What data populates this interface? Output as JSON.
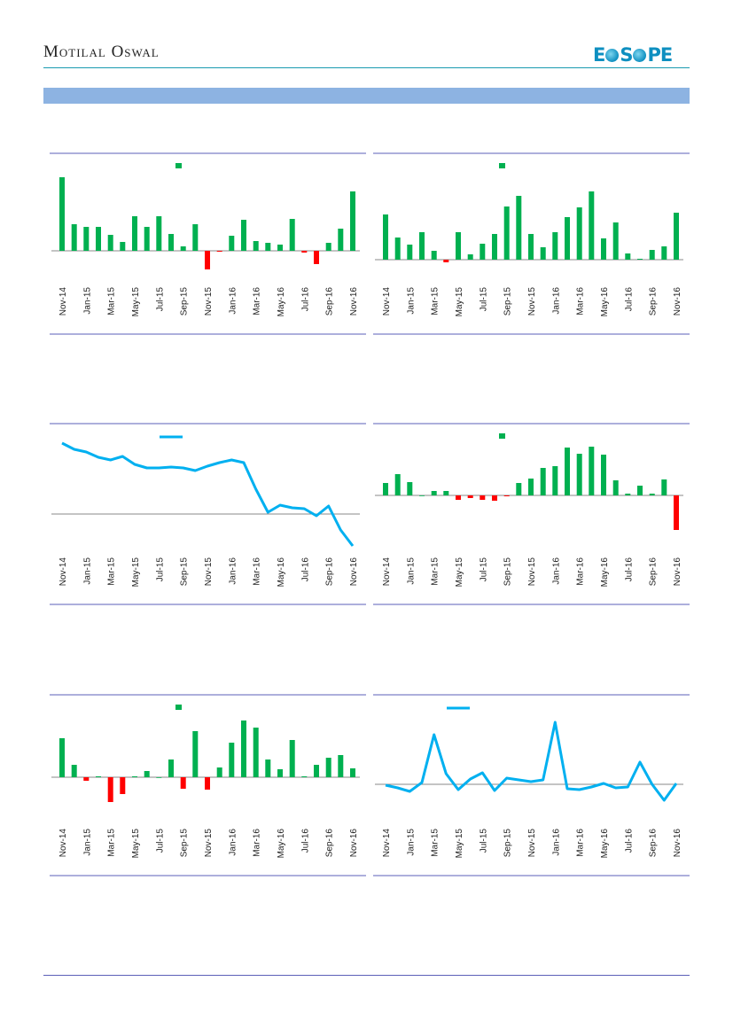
{
  "header": {
    "brand": "Motilal Oswal",
    "logo_text": "EcoScope"
  },
  "colors": {
    "positive": "#00b050",
    "negative": "#ff0000",
    "line": "#00b0f0",
    "frame": "#5b5fb8",
    "banner": "#8db3e2"
  },
  "chart_data": [
    {
      "type": "bar",
      "categories": [
        "Nov-14",
        "Dec-14",
        "Jan-15",
        "Feb-15",
        "Mar-15",
        "Apr-15",
        "May-15",
        "Jun-15",
        "Jul-15",
        "Aug-15",
        "Sep-15",
        "Oct-15",
        "Nov-15",
        "Dec-15",
        "Jan-16",
        "Feb-16",
        "Mar-16",
        "Apr-16",
        "May-16",
        "Jun-16",
        "Jul-16",
        "Aug-16",
        "Sep-16",
        "Oct-16",
        "Nov-16"
      ],
      "tick_labels": [
        "Nov-14",
        "Jan-15",
        "Mar-15",
        "May-15",
        "Jul-15",
        "Sep-15",
        "Nov-15",
        "Jan-16",
        "Mar-16",
        "May-16",
        "Jul-16",
        "Sep-16",
        "Nov-16"
      ],
      "values": [
        83,
        30,
        27,
        27,
        18,
        10,
        39,
        27,
        39,
        19,
        5,
        30,
        -21,
        -1,
        17,
        35,
        11,
        9,
        7,
        36,
        -2,
        -15,
        9,
        25,
        67
      ],
      "legend": "top-center"
    },
    {
      "type": "bar",
      "categories": [
        "Nov-14",
        "Dec-14",
        "Jan-15",
        "Feb-15",
        "Mar-15",
        "Apr-15",
        "May-15",
        "Jun-15",
        "Jul-15",
        "Aug-15",
        "Sep-15",
        "Oct-15",
        "Nov-15",
        "Dec-15",
        "Jan-16",
        "Feb-16",
        "Mar-16",
        "Apr-16",
        "May-16",
        "Jun-16",
        "Jul-16",
        "Aug-16",
        "Sep-16",
        "Oct-16",
        "Nov-16"
      ],
      "tick_labels": [
        "Nov-14",
        "Jan-15",
        "Mar-15",
        "May-15",
        "Jul-15",
        "Sep-15",
        "Nov-15",
        "Jan-16",
        "Mar-16",
        "May-16",
        "Jul-16",
        "Sep-16",
        "Nov-16"
      ],
      "values": [
        51,
        25,
        17,
        31,
        10,
        -3,
        31,
        6,
        18,
        29,
        60,
        72,
        29,
        14,
        31,
        48,
        59,
        77,
        24,
        42,
        7,
        1,
        11,
        15,
        53
      ],
      "legend": "top-center"
    },
    {
      "type": "line",
      "categories": [
        "Nov-14",
        "Dec-14",
        "Jan-15",
        "Feb-15",
        "Mar-15",
        "Apr-15",
        "May-15",
        "Jun-15",
        "Jul-15",
        "Aug-15",
        "Sep-15",
        "Oct-15",
        "Nov-15",
        "Dec-15",
        "Jan-16",
        "Feb-16",
        "Mar-16",
        "Apr-16",
        "May-16",
        "Jun-16",
        "Jul-16",
        "Aug-16",
        "Sep-16",
        "Oct-16",
        "Nov-16"
      ],
      "tick_labels": [
        "Nov-14",
        "Jan-15",
        "Mar-15",
        "May-15",
        "Jul-15",
        "Sep-15",
        "Nov-15",
        "Jan-16",
        "Mar-16",
        "May-16",
        "Jul-16",
        "Sep-16",
        "Nov-16"
      ],
      "values": [
        80,
        73,
        70,
        64,
        61,
        65,
        56,
        52,
        52,
        53,
        52,
        49,
        54,
        58,
        61,
        58,
        28,
        2,
        10,
        7,
        6,
        -2,
        9,
        -18,
        -36
      ],
      "legend": "top-center"
    },
    {
      "type": "bar",
      "categories": [
        "Nov-14",
        "Dec-14",
        "Jan-15",
        "Feb-15",
        "Mar-15",
        "Apr-15",
        "May-15",
        "Jun-15",
        "Jul-15",
        "Aug-15",
        "Sep-15",
        "Oct-15",
        "Nov-15",
        "Dec-15",
        "Jan-16",
        "Feb-16",
        "Mar-16",
        "Apr-16",
        "May-16",
        "Jun-16",
        "Jul-16",
        "Aug-16",
        "Sep-16",
        "Oct-16",
        "Nov-16"
      ],
      "tick_labels": [
        "Nov-14",
        "Jan-15",
        "Mar-15",
        "May-15",
        "Jul-15",
        "Sep-15",
        "Nov-15",
        "Jan-16",
        "Mar-16",
        "May-16",
        "Jul-16",
        "Sep-16",
        "Nov-16"
      ],
      "values": [
        14,
        24,
        15,
        0,
        5,
        5,
        -5,
        -3,
        -5,
        -6,
        -1,
        14,
        19,
        31,
        33,
        54,
        47,
        55,
        46,
        17,
        2,
        11,
        2,
        18,
        -39
      ],
      "legend": "top-center"
    },
    {
      "type": "bar",
      "categories": [
        "Nov-14",
        "Dec-14",
        "Jan-15",
        "Feb-15",
        "Mar-15",
        "Apr-15",
        "May-15",
        "Jun-15",
        "Jul-15",
        "Aug-15",
        "Sep-15",
        "Oct-15",
        "Nov-15",
        "Dec-15",
        "Jan-16",
        "Feb-16",
        "Mar-16",
        "Apr-16",
        "May-16",
        "Jun-16",
        "Jul-16",
        "Aug-16",
        "Sep-16",
        "Oct-16",
        "Nov-16"
      ],
      "tick_labels": [
        "Nov-14",
        "Jan-15",
        "Mar-15",
        "May-15",
        "Jul-15",
        "Sep-15",
        "Nov-15",
        "Jan-16",
        "Mar-16",
        "May-16",
        "Jul-16",
        "Sep-16",
        "Nov-16"
      ],
      "values": [
        44,
        14,
        -4,
        1,
        -28,
        -19,
        1,
        7,
        0,
        20,
        -13,
        52,
        -14,
        11,
        39,
        64,
        56,
        20,
        9,
        42,
        1,
        14,
        22,
        25,
        10
      ],
      "legend": "top-center"
    },
    {
      "type": "line",
      "categories": [
        "Nov-14",
        "Dec-14",
        "Jan-15",
        "Feb-15",
        "Mar-15",
        "Apr-15",
        "May-15",
        "Jun-15",
        "Jul-15",
        "Aug-15",
        "Sep-15",
        "Oct-15",
        "Nov-15",
        "Dec-15",
        "Jan-16",
        "Feb-16",
        "Mar-16",
        "Apr-16",
        "May-16",
        "Jun-16",
        "Jul-16",
        "Aug-16",
        "Sep-16",
        "Oct-16",
        "Nov-16"
      ],
      "tick_labels": [
        "Nov-14",
        "Jan-15",
        "Mar-15",
        "May-15",
        "Jul-15",
        "Sep-15",
        "Nov-15",
        "Jan-16",
        "Mar-16",
        "May-16",
        "Jul-16",
        "Sep-16",
        "Nov-16"
      ],
      "values": [
        -1,
        -4,
        -8,
        2,
        56,
        12,
        -6,
        6,
        13,
        -7,
        7,
        5,
        3,
        5,
        70,
        -5,
        -6,
        -3,
        1,
        -4,
        -3,
        25,
        0,
        -18,
        1
      ],
      "legend": "top-center"
    }
  ]
}
